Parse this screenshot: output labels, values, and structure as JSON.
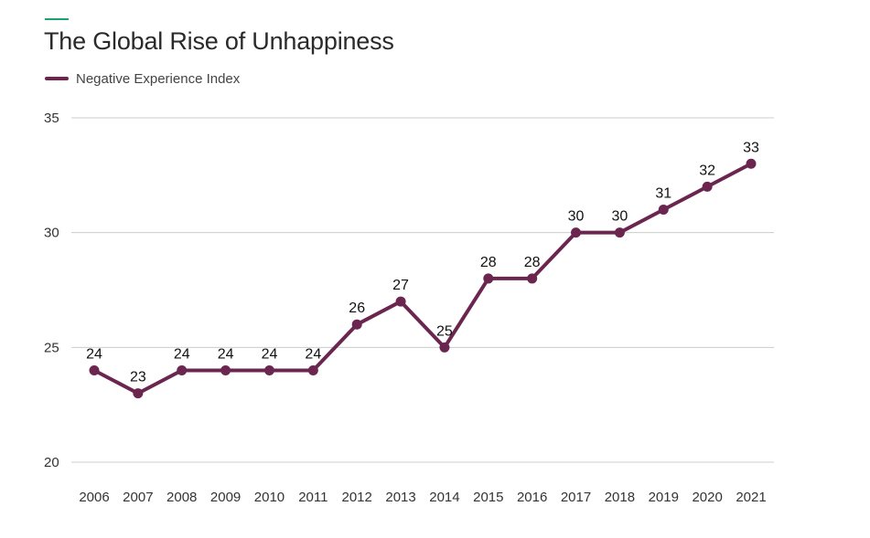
{
  "chart_data": {
    "type": "line",
    "title": "The Global Rise of Unhappiness",
    "xlabel": "",
    "ylabel": "",
    "x": [
      "2006",
      "2007",
      "2008",
      "2009",
      "2010",
      "2011",
      "2012",
      "2013",
      "2014",
      "2015",
      "2016",
      "2017",
      "2018",
      "2019",
      "2020",
      "2021"
    ],
    "series": [
      {
        "name": "Negative Experience Index",
        "color": "#6b2650",
        "values": [
          24,
          23,
          24,
          24,
          24,
          24,
          26,
          27,
          25,
          28,
          28,
          30,
          30,
          31,
          32,
          33
        ]
      }
    ],
    "ylim": [
      20,
      35
    ],
    "yticks": [
      20,
      25,
      30,
      35
    ],
    "grid": "horizontal",
    "legend": "top-left",
    "data_labels": true
  },
  "colors": {
    "accent_rule": "#1aa36e",
    "gridline": "#cccccc"
  }
}
